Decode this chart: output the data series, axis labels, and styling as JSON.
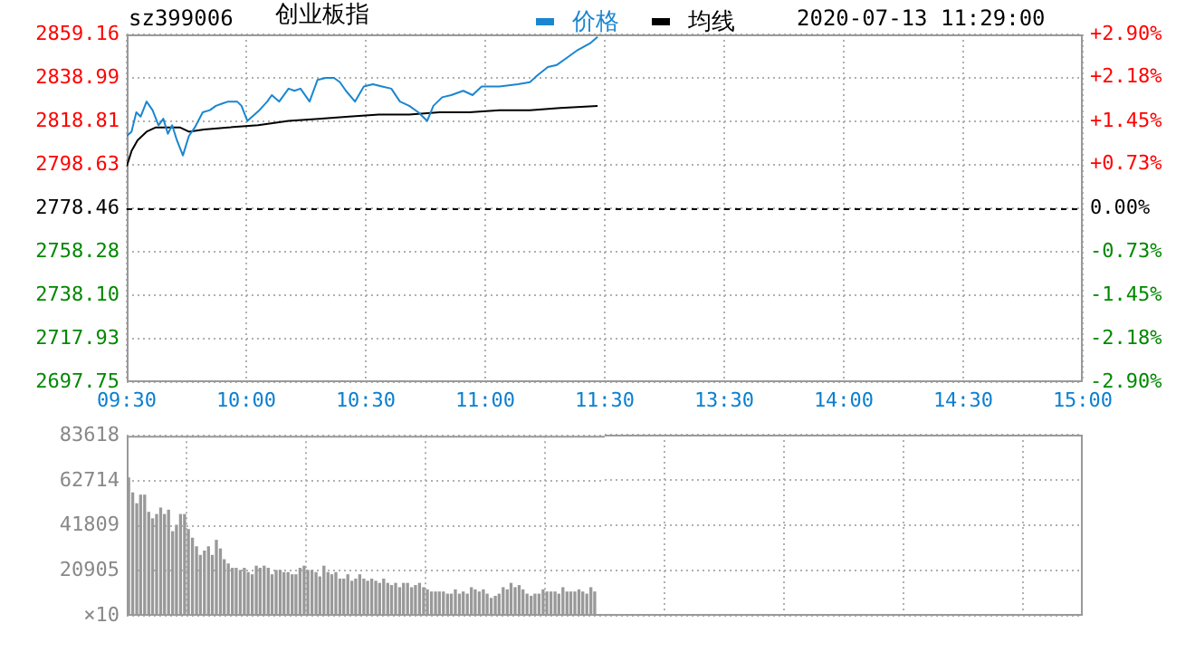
{
  "chart_data": [
    {
      "type": "line",
      "title": "创业板指",
      "annotations": [
        "sz399006",
        "2020-07-13 11:29:00"
      ],
      "legend": "top",
      "grid": true,
      "xlim": [
        9.5,
        11.5
      ],
      "xticks": [
        {
          "value": 9.5,
          "label": "09:30"
        },
        {
          "value": 10,
          "label": "10:00"
        },
        {
          "value": 10.5,
          "label": "10:30"
        },
        {
          "value": 11,
          "label": "11:00"
        },
        {
          "value": 11.5,
          "label": "11:30"
        }
      ],
      "ylim": [
        2697.75,
        2859.16
      ],
      "yticks": [
        2697.75,
        2717.93,
        {
          "value": 2738.1,
          "label": "2738.10"
        },
        2758.28,
        2778.46,
        2798.63,
        2818.81,
        2838.99,
        2859.16
      ],
      "ref_lines": [
        {
          "axis": "y",
          "value": 2778.46,
          "color": "#000000",
          "line_style": "dashed"
        }
      ],
      "series": [
        {
          "name": "价格",
          "color": "#1a86d0",
          "x": [
            9.5,
            9.52,
            9.54,
            9.558,
            9.583,
            9.608,
            9.633,
            9.653,
            9.672,
            9.69,
            9.71,
            9.735,
            9.76,
            9.785,
            9.818,
            9.848,
            9.873,
            9.898,
            9.925,
            9.962,
            9.98,
            10.005,
            10.025,
            10.055,
            10.088,
            10.107,
            10.138,
            10.177,
            10.202,
            10.227,
            10.265,
            10.298,
            10.333,
            10.367,
            10.392,
            10.417,
            10.455,
            10.492,
            10.53,
            10.568,
            10.607,
            10.643,
            10.682,
            10.72,
            10.757,
            10.783,
            10.82,
            10.858,
            10.908,
            10.947,
            10.985,
            11.06,
            11.137,
            11.187,
            11.217,
            11.262,
            11.3,
            11.338,
            11.388,
            11.438,
            11.47
          ],
          "values": [
            2812,
            2814,
            2823,
            2821,
            2828,
            2824,
            2817,
            2820,
            2813,
            2817,
            2810,
            2803,
            2812,
            2816,
            2823,
            2824,
            2826,
            2827,
            2828,
            2828,
            2826,
            2819,
            2821,
            2824,
            2828,
            2831,
            2828,
            2834,
            2833,
            2834,
            2828,
            2838,
            2839,
            2839,
            2837,
            2833,
            2828,
            2835,
            2836,
            2835,
            2834,
            2828,
            2826,
            2823,
            2819,
            2826,
            2830,
            2831,
            2833,
            2831,
            2835,
            2835,
            2836,
            2837,
            2840,
            2844,
            2845,
            2848,
            2852,
            2855,
            2858
          ]
        },
        {
          "name": "均线",
          "color": "#000000",
          "x": [
            9.5,
            9.52,
            9.545,
            9.583,
            9.622,
            9.672,
            9.722,
            9.76,
            9.823,
            9.925,
            10.05,
            10.177,
            10.303,
            10.43,
            10.555,
            10.682,
            10.808,
            10.933,
            11.06,
            11.187,
            11.313,
            11.47
          ],
          "values": [
            2798,
            2805,
            2810,
            2814,
            2816,
            2816,
            2816,
            2814,
            2815,
            2816,
            2817,
            2819,
            2820,
            2821,
            2822,
            2822,
            2823,
            2823,
            2824,
            2824,
            2825,
            2826
          ]
        }
      ]
    },
    {
      "type": "line",
      "grid": true,
      "xlim": [
        13,
        15
      ],
      "xticks": [
        {
          "value": 13.5,
          "label": "13:30"
        },
        {
          "value": 14,
          "label": "14:00"
        },
        {
          "value": 14.5,
          "label": "14:30"
        },
        {
          "value": 15,
          "label": "15:00"
        }
      ],
      "y2lim": [
        -2.9,
        2.9
      ],
      "y2ticks": [
        {
          "value": -2.9,
          "label": "-2.90%"
        },
        {
          "value": -2.18,
          "label": "-2.18%"
        },
        {
          "value": -1.45,
          "label": "-1.45%"
        },
        {
          "value": -0.73,
          "label": "-0.73%"
        },
        {
          "value": 0,
          "label": "0.00%"
        },
        {
          "value": 0.73,
          "label": "+0.73%"
        },
        {
          "value": 1.45,
          "label": "+1.45%"
        },
        {
          "value": 2.18,
          "label": "+2.18%"
        },
        {
          "value": 2.9,
          "label": "+2.90%"
        }
      ],
      "ref_lines": [
        {
          "axis": "y2",
          "value": 0,
          "color": "#000000",
          "line_style": "dashed"
        }
      ]
    },
    {
      "type": "bar",
      "color": "#999999",
      "grid": true,
      "tick_labels": "y",
      "ylabel": "×10",
      "xlim": [
        9.5,
        11.5
      ],
      "xticks": [
        9.5,
        10,
        10.5,
        11,
        11.5
      ],
      "ylim": [
        0,
        83618
      ],
      "yticks": [
        {
          "value": 0,
          "label": null
        },
        20905,
        41809,
        62714,
        83618
      ],
      "x": [
        9.508,
        9.525,
        9.542,
        9.558,
        9.575,
        9.592,
        9.608,
        9.625,
        9.642,
        9.658,
        9.675,
        9.692,
        9.708,
        9.725,
        9.742,
        9.758,
        9.775,
        9.792,
        9.808,
        9.825,
        9.842,
        9.858,
        9.875,
        9.892,
        9.908,
        9.925,
        9.942,
        9.958,
        9.975,
        9.992,
        10.008,
        10.025,
        10.042,
        10.058,
        10.075,
        10.092,
        10.108,
        10.125,
        10.142,
        10.158,
        10.175,
        10.192,
        10.208,
        10.225,
        10.242,
        10.258,
        10.275,
        10.292,
        10.308,
        10.325,
        10.342,
        10.358,
        10.375,
        10.392,
        10.408,
        10.425,
        10.442,
        10.458,
        10.475,
        10.492,
        10.508,
        10.525,
        10.542,
        10.558,
        10.575,
        10.592,
        10.608,
        10.625,
        10.642,
        10.658,
        10.675,
        10.692,
        10.708,
        10.725,
        10.742,
        10.758,
        10.775,
        10.792,
        10.808,
        10.825,
        10.842,
        10.858,
        10.875,
        10.892,
        10.908,
        10.925,
        10.942,
        10.958,
        10.975,
        10.992,
        11.008,
        11.025,
        11.042,
        11.058,
        11.075,
        11.092,
        11.108,
        11.125,
        11.142,
        11.158,
        11.175,
        11.192,
        11.208,
        11.225,
        11.242,
        11.258,
        11.275,
        11.292,
        11.308,
        11.325,
        11.342,
        11.358,
        11.375,
        11.392,
        11.408,
        11.425,
        11.442,
        11.458
      ],
      "values": [
        64000,
        57000,
        52000,
        56000,
        56000,
        48000,
        45000,
        47000,
        50000,
        47000,
        49000,
        39000,
        42000,
        47000,
        47000,
        40000,
        36000,
        32000,
        28000,
        30000,
        32000,
        28000,
        35000,
        31000,
        26000,
        24000,
        22000,
        22000,
        21000,
        22000,
        20000,
        19000,
        23000,
        22000,
        23000,
        22000,
        19000,
        21000,
        21000,
        20000,
        20000,
        19000,
        19000,
        22000,
        23000,
        21000,
        21000,
        20000,
        18000,
        23000,
        20000,
        19000,
        20000,
        17000,
        17000,
        19000,
        16000,
        17000,
        19000,
        17000,
        16000,
        17000,
        16000,
        15000,
        17000,
        15000,
        14000,
        15000,
        13000,
        15000,
        15000,
        13000,
        14000,
        15000,
        13000,
        12000,
        11000,
        11000,
        11000,
        11000,
        10000,
        10000,
        12000,
        10000,
        11000,
        10000,
        13000,
        12000,
        11000,
        12000,
        10000,
        8000,
        9000,
        10000,
        13000,
        12000,
        15000,
        13000,
        14000,
        12000,
        10000,
        9000,
        10000,
        10000,
        12000,
        11000,
        11000,
        11000,
        10000,
        13000,
        11000,
        11000,
        11000,
        12000,
        11000,
        10000,
        13000,
        11000
      ]
    },
    {
      "type": "bar",
      "grid": true,
      "tick_labels": false,
      "xlim": [
        13,
        15
      ],
      "xticks": [
        13.5,
        14,
        14.5,
        15
      ],
      "ylim": [
        0,
        83618
      ],
      "yticks": [
        0,
        20905,
        41809,
        62714,
        83618
      ]
    }
  ]
}
